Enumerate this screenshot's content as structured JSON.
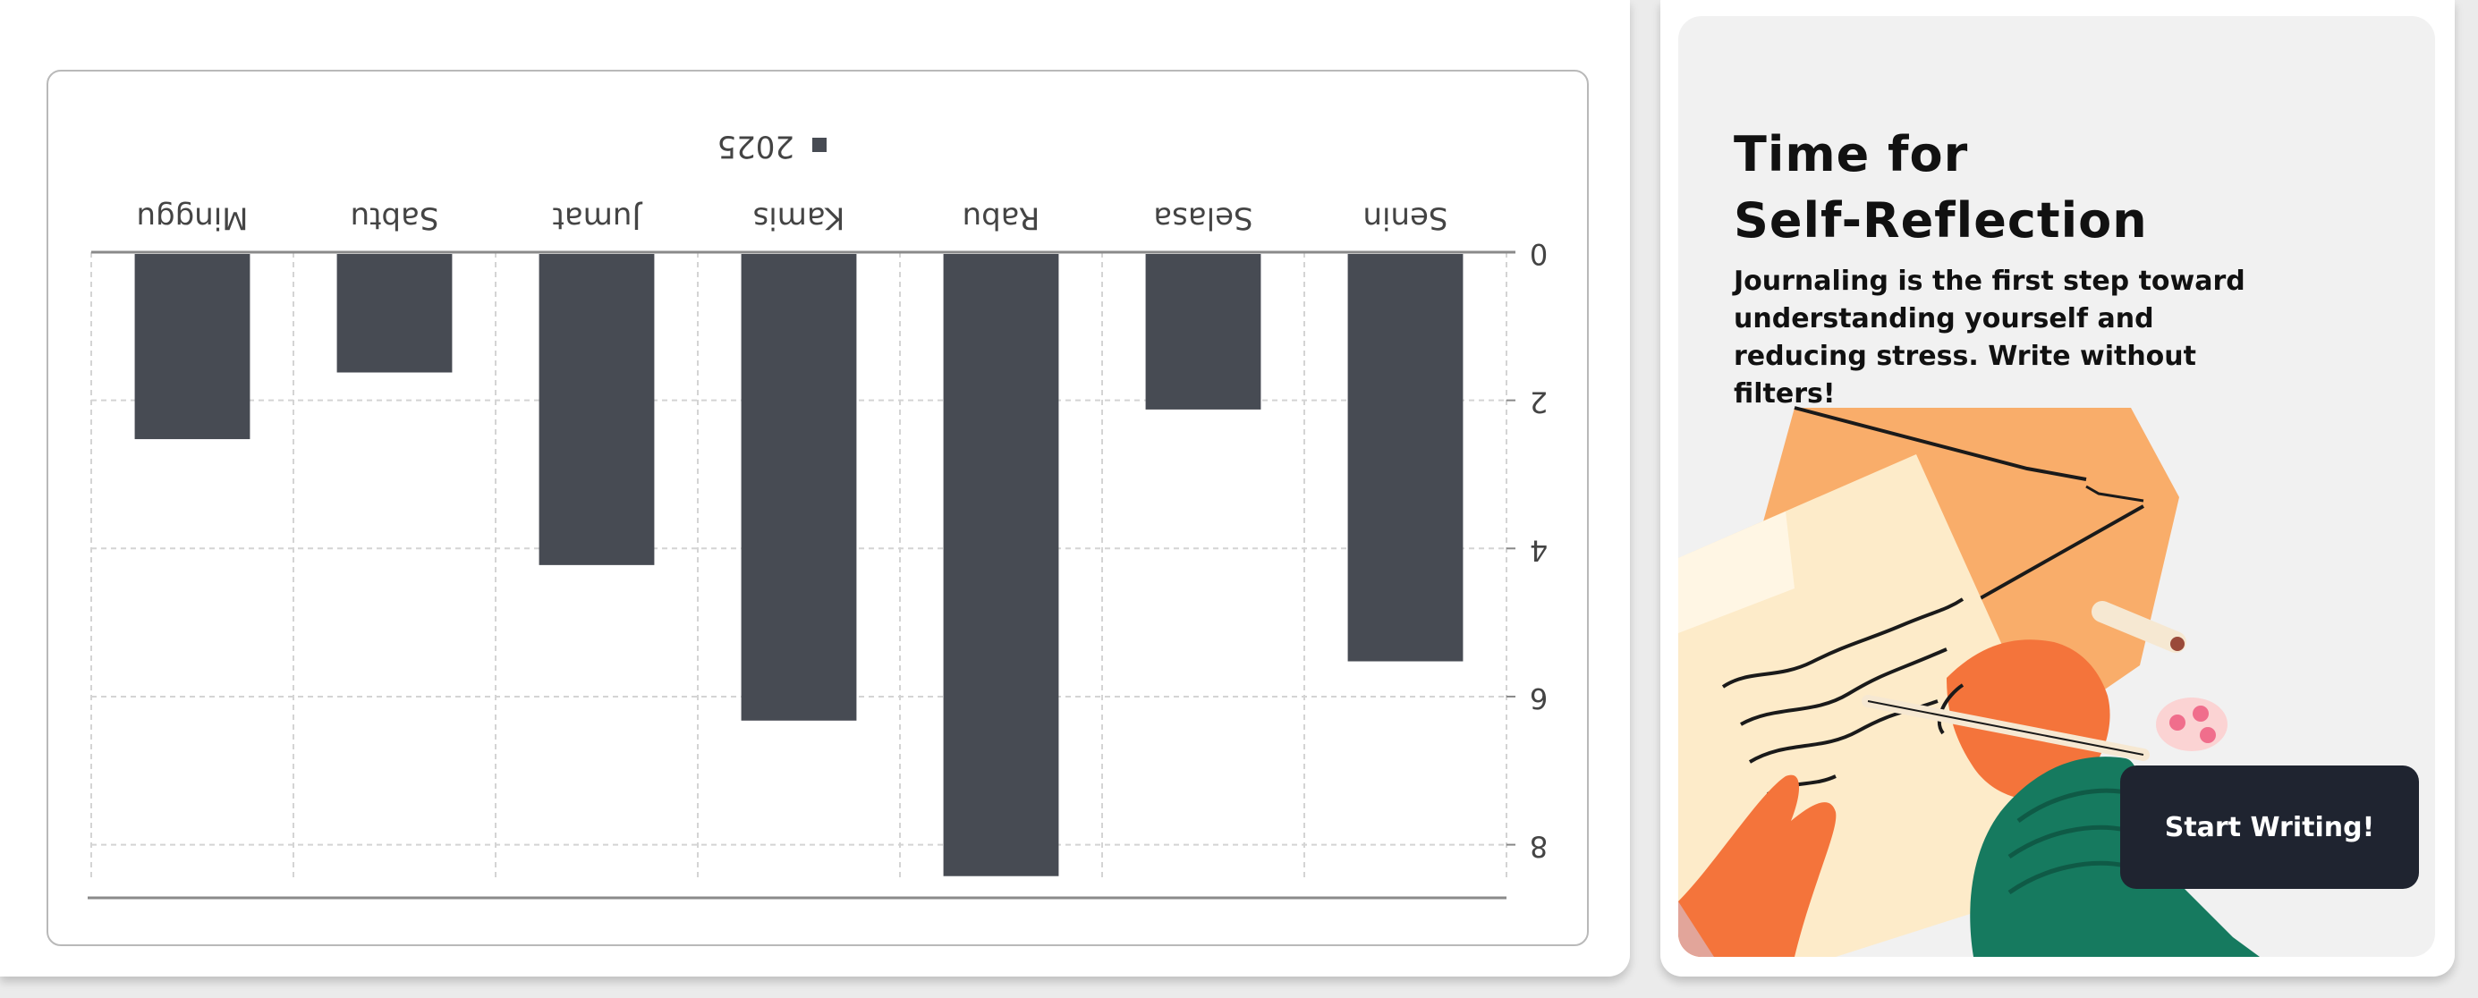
{
  "chart_data": {
    "type": "bar",
    "orientation": "flipped-upside-down",
    "categories": [
      "Senin",
      "Selasa",
      "Rabu",
      "Kamis",
      "Jumat",
      "Sabtu",
      "Minggu"
    ],
    "series": [
      {
        "name": "2025",
        "color": "#474b53",
        "values": [
          5.5,
          2.1,
          8.4,
          6.3,
          4.2,
          1.6,
          2.5
        ]
      }
    ],
    "ylim": [
      0,
      8.5
    ],
    "yticks": [
      0,
      2,
      4,
      6,
      8
    ],
    "grid": true,
    "legend_position": "top"
  },
  "promo": {
    "title_line1": "Time for",
    "title_line2": "Self-Reflection",
    "text": "Journaling is the first step toward understanding yourself and reducing stress. Write without filters!",
    "button_label": "Start Writing!",
    "colors": {
      "panel": "#f1f1f1",
      "button": "#1f2430"
    }
  }
}
